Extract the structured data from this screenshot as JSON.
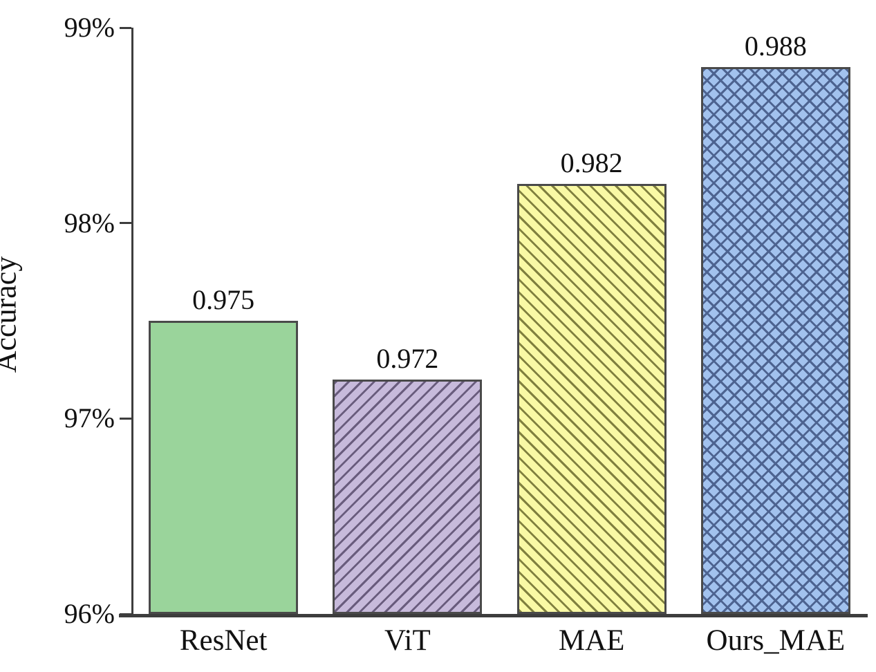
{
  "chart_data": {
    "type": "bar",
    "title": "",
    "xlabel": "",
    "ylabel": "Accuracy",
    "categories": [
      "ResNet",
      "ViT",
      "MAE",
      "Ours_MAE"
    ],
    "values": [
      0.975,
      0.972,
      0.982,
      0.988
    ],
    "value_labels": [
      "0.975",
      "0.972",
      "0.982",
      "0.988"
    ],
    "ylim": [
      96,
      99
    ],
    "ytick_labels": [
      "99%",
      "98%",
      "97%",
      "96%"
    ],
    "ytick_values": [
      99,
      98,
      97,
      96
    ],
    "grid": false,
    "legend": null,
    "axis_color": "#3d3d3d",
    "bar_edge_color": "#4a4a4a",
    "bar_styles": [
      {
        "fill": "#9ad49b",
        "hatch": "none",
        "hatch_color": ""
      },
      {
        "fill": "#c7badb",
        "hatch": "diagonal-forward",
        "hatch_color": "#695c7d"
      },
      {
        "fill": "#f9f9a5",
        "hatch": "diagonal-back",
        "hatch_color": "#80803f"
      },
      {
        "fill": "#a2c2ee",
        "hatch": "crosshatch",
        "hatch_color": "#4d6390"
      }
    ]
  }
}
